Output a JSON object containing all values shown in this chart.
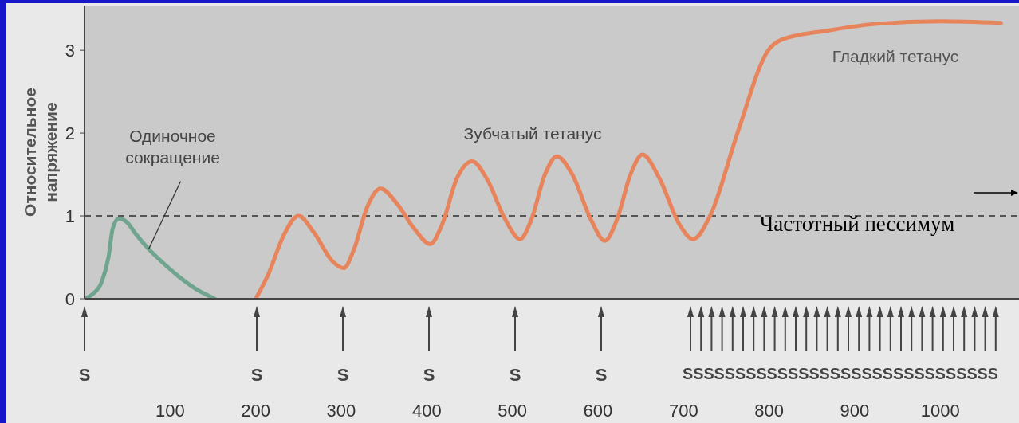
{
  "chart_data": {
    "type": "line",
    "ylabel": "Относительное напряжение",
    "xlim": [
      0,
      1092
    ],
    "ylim": [
      0,
      3.54
    ],
    "xticks": [
      100,
      200,
      300,
      400,
      500,
      600,
      700,
      800,
      900,
      1000
    ],
    "yticks": [
      0,
      1,
      2,
      3
    ],
    "grid": false,
    "marker": "none",
    "series": [
      {
        "color": "#6fa58f",
        "x": [
          0,
          10,
          20,
          28,
          33,
          40,
          50,
          60,
          75,
          90,
          110,
          130,
          152
        ],
        "values": [
          0,
          0.06,
          0.2,
          0.5,
          0.85,
          0.97,
          0.92,
          0.78,
          0.6,
          0.45,
          0.27,
          0.12,
          0
        ]
      },
      {
        "color": "#e8845c",
        "x": [
          200,
          215,
          232,
          250,
          268,
          290,
          303,
          315,
          330,
          346,
          365,
          385,
          404,
          418,
          435,
          453,
          470,
          492,
          509,
          522,
          538,
          552,
          570,
          592,
          608,
          622,
          638,
          652,
          672,
          695,
          711,
          731,
          763,
          799,
          815,
          870,
          926,
          1000,
          1071
        ],
        "values": [
          0,
          0.3,
          0.75,
          1.0,
          0.8,
          0.45,
          0.37,
          0.6,
          1.1,
          1.33,
          1.15,
          0.85,
          0.66,
          0.9,
          1.45,
          1.66,
          1.45,
          0.95,
          0.72,
          0.95,
          1.5,
          1.72,
          1.5,
          0.95,
          0.7,
          0.95,
          1.5,
          1.74,
          1.45,
          0.9,
          0.72,
          1.0,
          2.0,
          3.0,
          3.13,
          3.24,
          3.32,
          3.35,
          3.33
        ]
      }
    ],
    "ref_lines": [
      {
        "axis": "y",
        "value": 1,
        "color": "#555555",
        "line_style": "dashed"
      }
    ],
    "annotations": [
      {
        "text": "Одиночное сокращение",
        "x": 75,
        "y": 0.6
      },
      "Зубчатый тетанус",
      "Гладкий тетанус",
      "Частотный пессимум",
      "S",
      "S",
      "S",
      "S",
      "S",
      "S",
      "SSSSSSSSSSSSSSSSSSSSSSSSSSSSSS"
    ]
  }
}
